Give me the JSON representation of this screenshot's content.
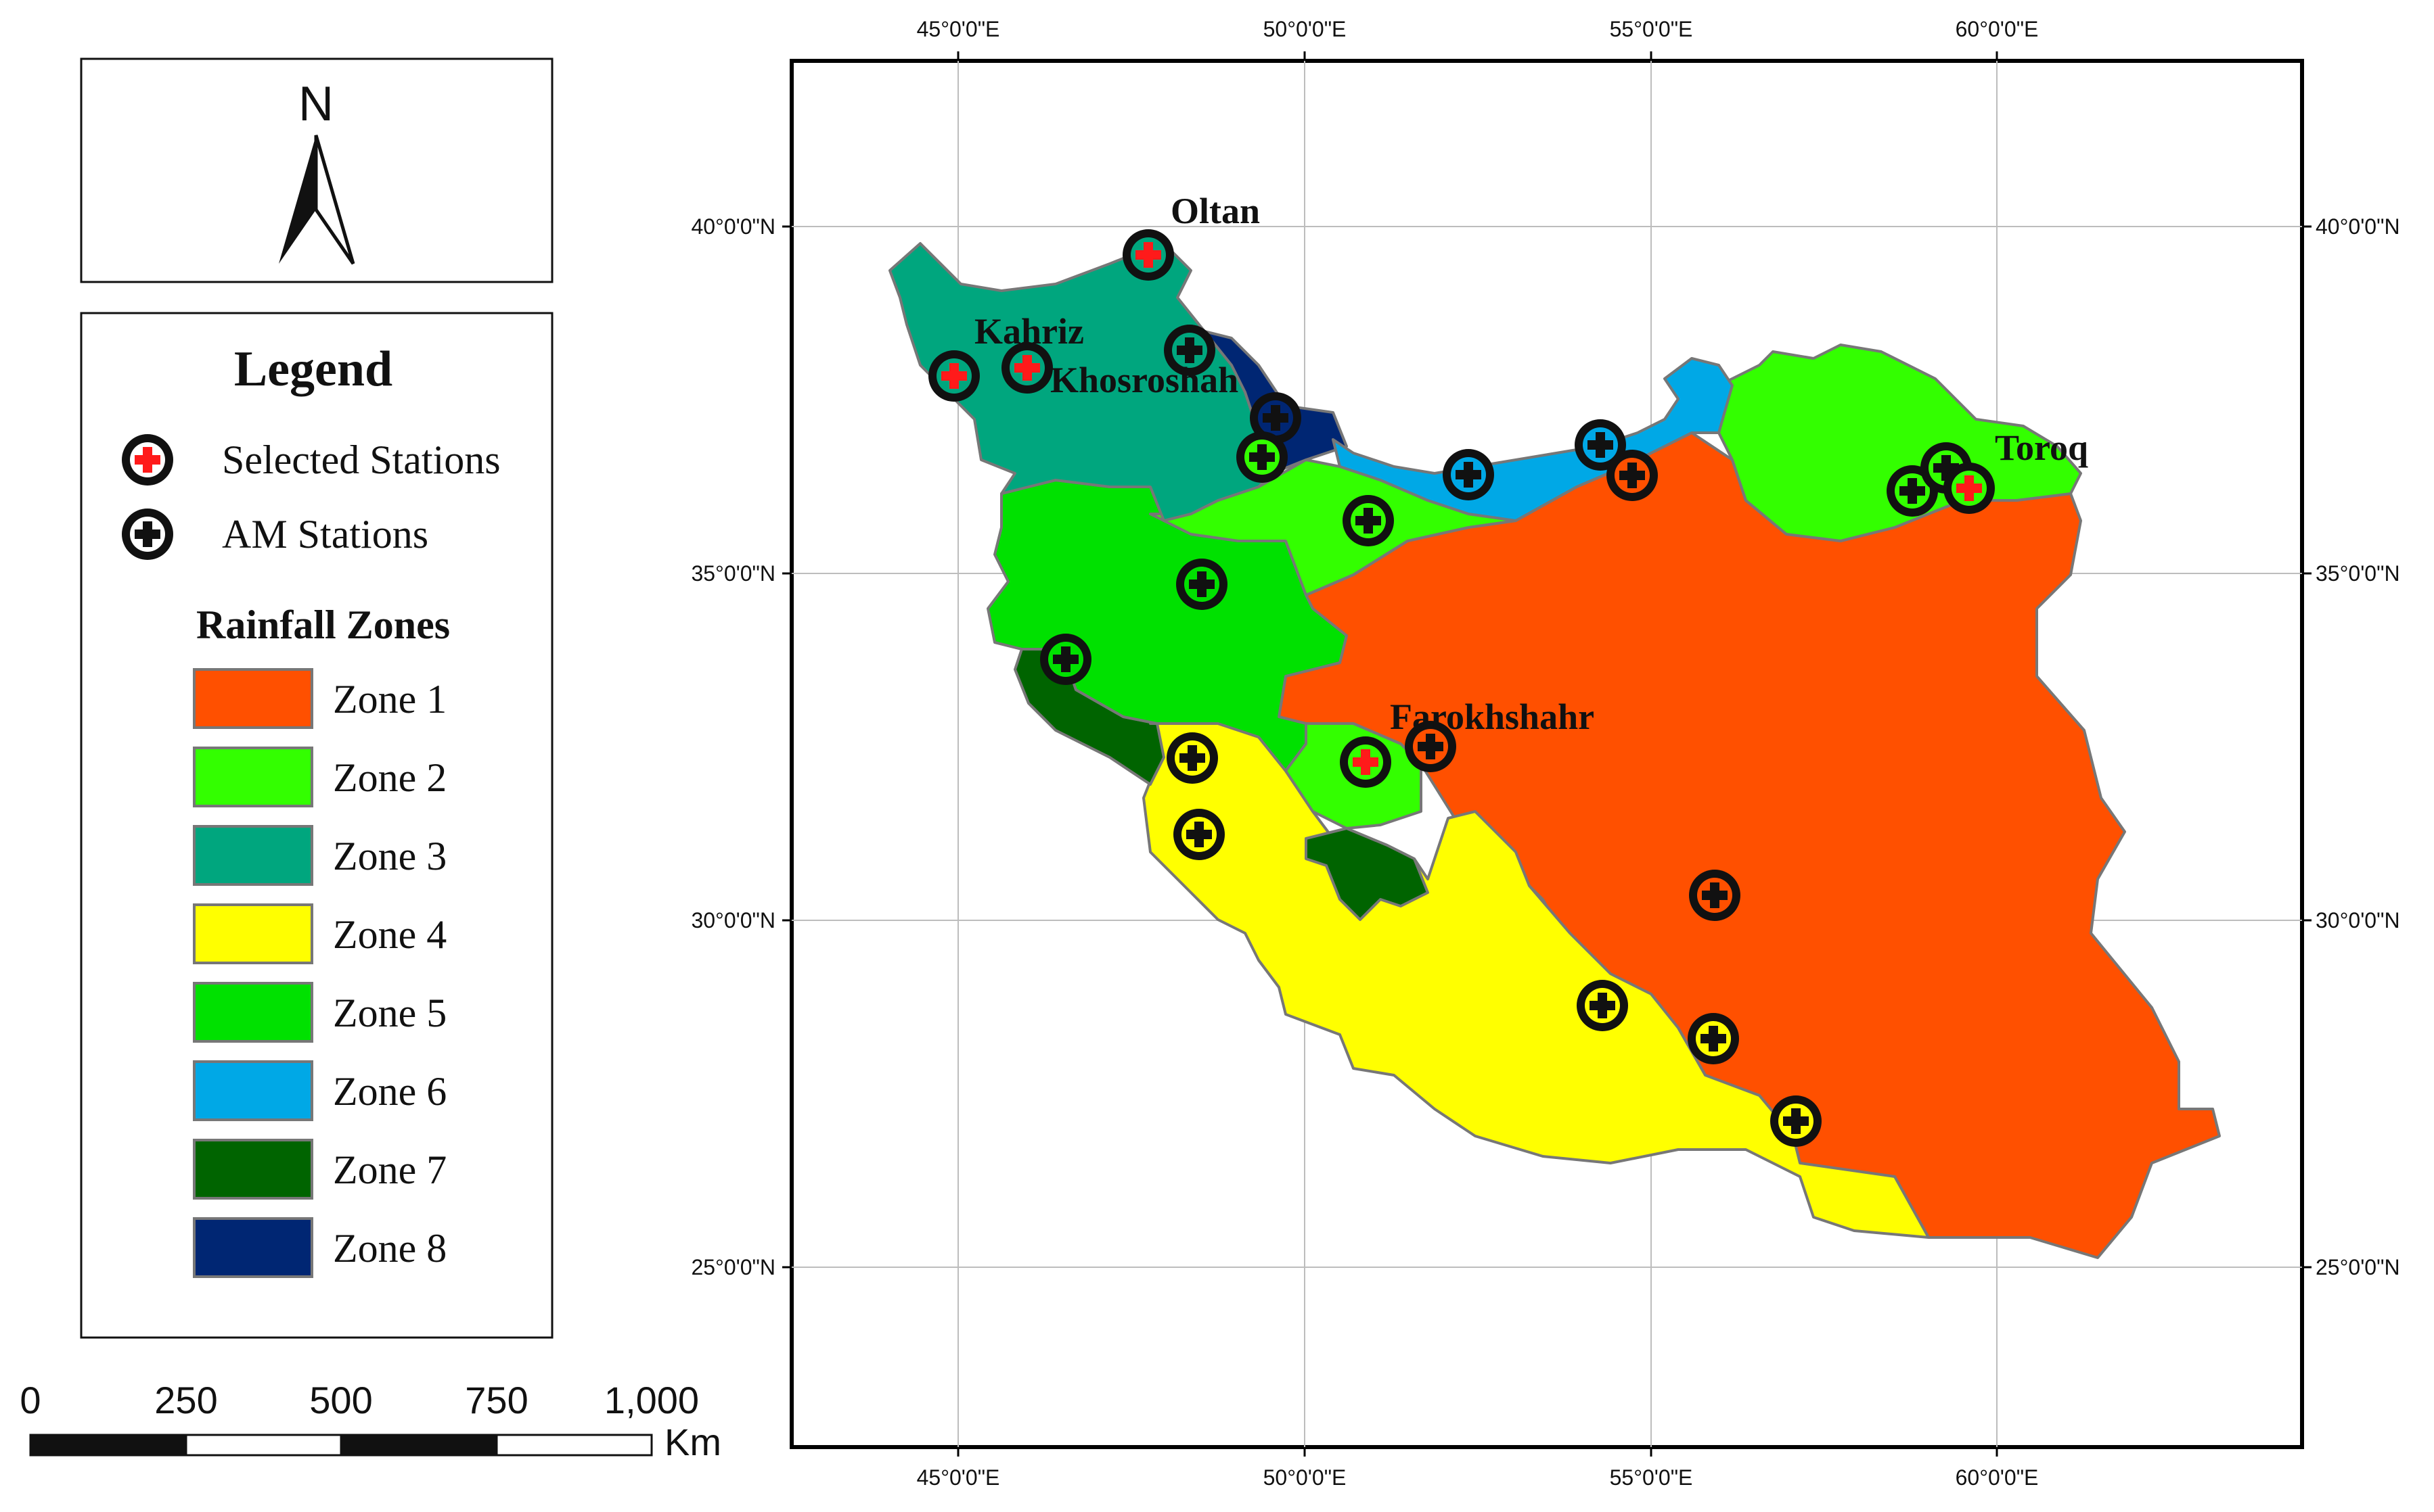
{
  "map": {
    "graticule": {
      "lon_labels": [
        "45°0'0\"E",
        "50°0'0\"E",
        "55°0'0\"E",
        "60°0'0\"E"
      ],
      "lat_labels": [
        "40°0'0\"N",
        "35°0'0\"N",
        "30°0'0\"N",
        "25°0'0\"N"
      ]
    },
    "zone_colors": {
      "zone1": "#ff5000",
      "zone2": "#33ff00",
      "zone3": "#00a67e",
      "zone4": "#ffff00",
      "zone5": "#00e100",
      "zone6": "#00a8e6",
      "zone7": "#006400",
      "zone8": "#002673"
    },
    "station_labels": {
      "oltan": "Oltan",
      "kahriz": "Kahriz",
      "khosroshah": "Khosroshah",
      "toroq": "Toroq",
      "farokhshahr": "Farokhshahr"
    }
  },
  "north_arrow": {
    "letter": "N"
  },
  "legend": {
    "title": "Legend",
    "selected_stations": "Selected Stations",
    "am_stations": "AM Stations",
    "rainfall_zones_title": "Rainfall Zones",
    "zones": [
      "Zone 1",
      "Zone 2",
      "Zone 3",
      "Zone 4",
      "Zone 5",
      "Zone 6",
      "Zone 7",
      "Zone 8"
    ]
  },
  "scale_bar": {
    "ticks": [
      "0",
      "250",
      "500",
      "750",
      "1,000"
    ],
    "unit": "Km"
  }
}
